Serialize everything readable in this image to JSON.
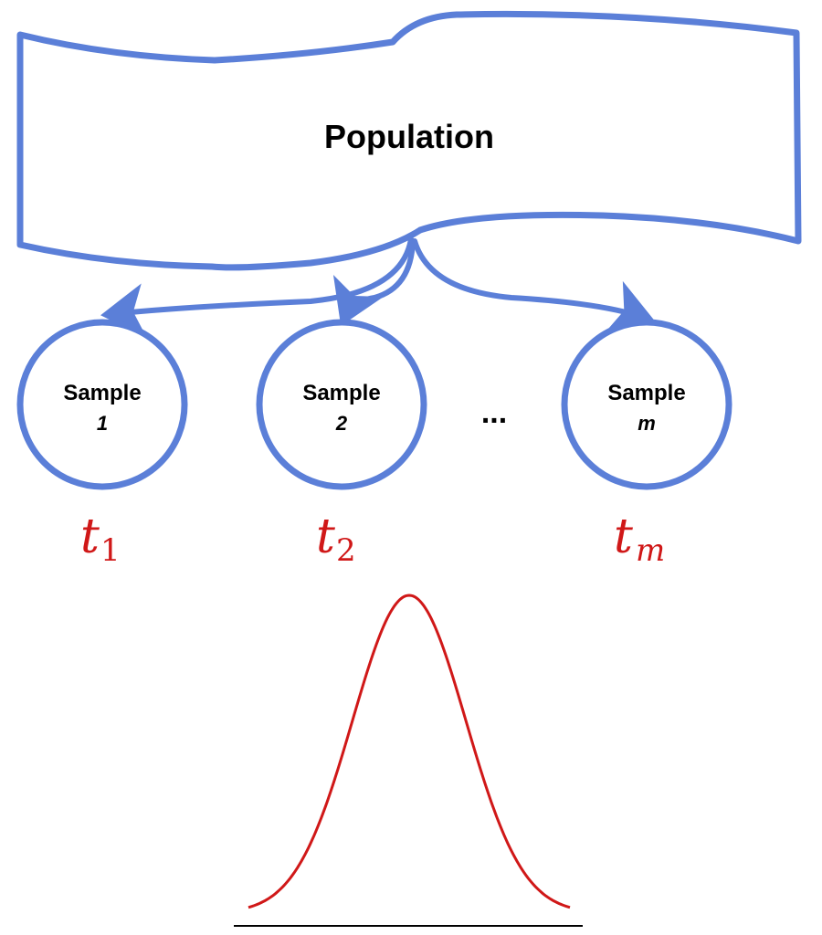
{
  "colors": {
    "outline": "#5b7fd8",
    "statistic": "#d01818",
    "curve": "#d01818",
    "baseline": "#000000",
    "text": "#000000"
  },
  "population": {
    "label": "Population"
  },
  "samples": [
    {
      "label": "Sample",
      "index": "1",
      "statistic": "t",
      "statistic_sub": "1"
    },
    {
      "label": "Sample",
      "index": "2",
      "statistic": "t",
      "statistic_sub": "2"
    },
    {
      "label": "Sample",
      "index": "m",
      "statistic": "t",
      "statistic_sub": "m"
    }
  ],
  "ellipsis": "...",
  "distribution": {
    "shape": "normal-bell-curve"
  }
}
